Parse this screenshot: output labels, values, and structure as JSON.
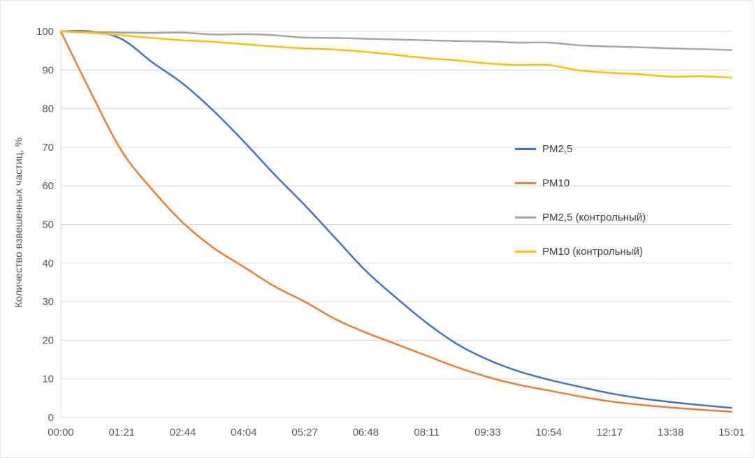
{
  "chart": {
    "y_axis_title": "Количество взвешенных частиц, %",
    "background_color": "#ffffff",
    "gridline_color": "#d9d9d9",
    "axis_line_color": "#d9d9d9",
    "tick_label_color": "#595959"
  },
  "chart_data": {
    "type": "line",
    "title": "",
    "xlabel": "",
    "ylabel": "Количество взвешенных частиц, %",
    "ylim": [
      0,
      100
    ],
    "y_ticks": [
      0,
      10,
      20,
      30,
      40,
      50,
      60,
      70,
      80,
      90,
      100
    ],
    "categories": [
      "00:00",
      "01:21",
      "02:44",
      "04:04",
      "05:27",
      "06:48",
      "08:11",
      "09:33",
      "10:54",
      "12:17",
      "13:38",
      "15:01"
    ],
    "grid": "horizontal",
    "legend_position": "middle-right",
    "note": "values sampled uniformly across the x-range; every 2nd sample aligns with a category tick",
    "samples_per_interval": 2,
    "series": [
      {
        "name": "PM2,5",
        "color": "#4472C4",
        "values": [
          100,
          100,
          98,
          92,
          86.5,
          79.5,
          71.5,
          63,
          55,
          46.5,
          38,
          31,
          24.5,
          19,
          15,
          12,
          9.8,
          8,
          6.3,
          5,
          4,
          3.2,
          2.5
        ]
      },
      {
        "name": "PM10",
        "color": "#ED7D31",
        "values": [
          100,
          84,
          69,
          59,
          50.5,
          44,
          39,
          34,
          30,
          25.5,
          22,
          19,
          16,
          13,
          10.5,
          8.5,
          7,
          5.5,
          4.2,
          3.3,
          2.6,
          2,
          1.5
        ]
      },
      {
        "name": "PM2,5 (контрольный)",
        "color": "#A5A5A5",
        "values": [
          100,
          99.9,
          99.7,
          99.6,
          99.7,
          99.2,
          99.3,
          99.0,
          98.4,
          98.3,
          98.1,
          97.9,
          97.7,
          97.5,
          97.4,
          97.1,
          97.1,
          96.4,
          96.1,
          95.9,
          95.6,
          95.4,
          95.2
        ]
      },
      {
        "name": "PM10 (контрольный)",
        "color": "#FFC000",
        "values": [
          100,
          99.6,
          99.0,
          98.3,
          97.7,
          97.3,
          96.7,
          96.1,
          95.6,
          95.3,
          94.7,
          93.9,
          93.1,
          92.5,
          91.7,
          91.3,
          91.3,
          89.9,
          89.3,
          88.9,
          88.3,
          88.4,
          88.0
        ]
      }
    ]
  }
}
